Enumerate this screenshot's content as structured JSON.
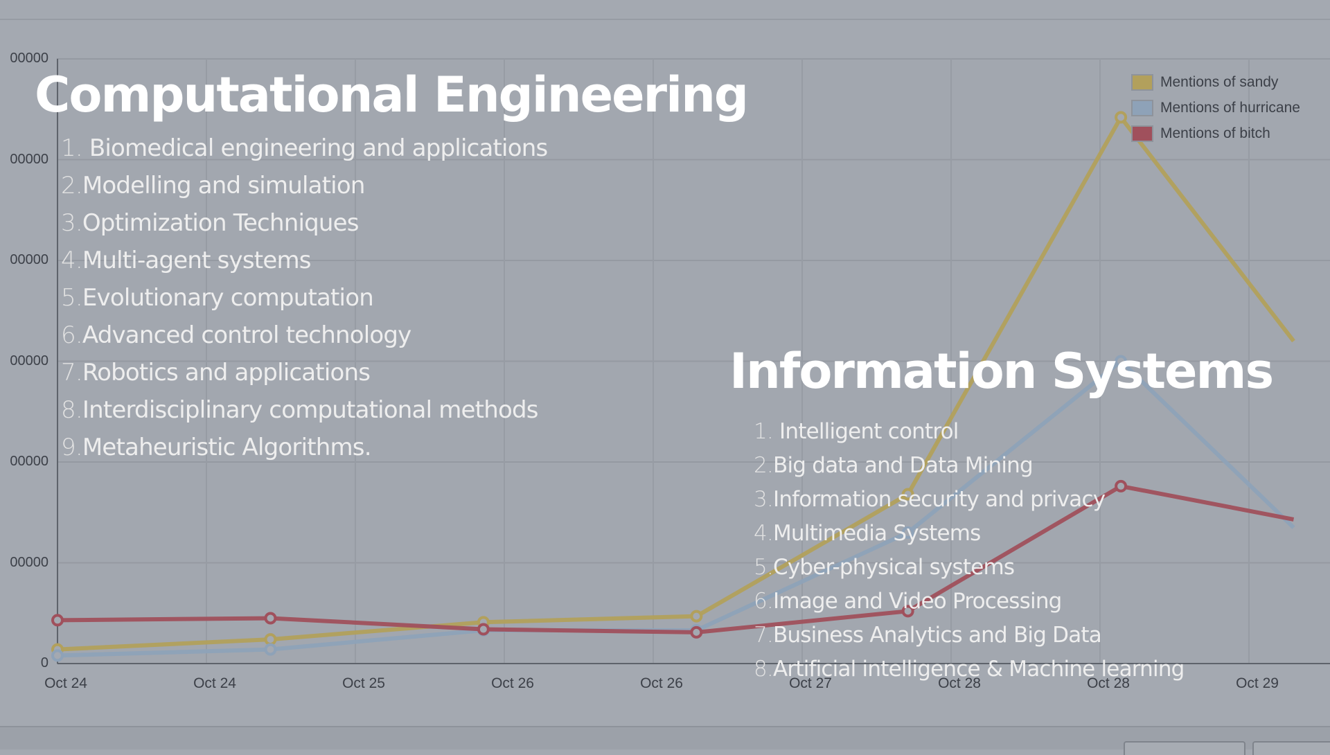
{
  "chart_data": {
    "type": "line",
    "x": [
      "Oct 24",
      "Oct 24",
      "Oct 25",
      "Oct 26",
      "Oct 26",
      "Oct 27",
      "Oct 28",
      "Oct 28",
      "Oct 29"
    ],
    "y_ticks": [
      "0",
      "00000",
      "00000",
      "00000",
      "00000",
      "00000",
      "00000"
    ],
    "ylim": [
      0,
      6
    ],
    "grid": true,
    "legend_position": "top-right",
    "series": [
      {
        "name": "Mentions of sandy",
        "color": "#b2a05c",
        "points": [
          [
            0,
            0.14
          ],
          [
            1.43,
            0.24
          ],
          [
            2.86,
            0.41
          ],
          [
            4.29,
            0.47
          ],
          [
            5.71,
            1.68
          ],
          [
            7.14,
            5.42
          ],
          [
            8.3,
            3.2
          ]
        ]
      },
      {
        "name": "Mentions of hurricane",
        "color": "#8ea2b8",
        "points": [
          [
            0,
            0.08
          ],
          [
            1.43,
            0.14
          ],
          [
            2.86,
            0.33
          ],
          [
            4.29,
            0.33
          ],
          [
            5.71,
            1.3
          ],
          [
            7.14,
            3.0
          ],
          [
            8.3,
            1.35
          ]
        ]
      },
      {
        "name": "Mentions of bitch",
        "color": "#a0505c",
        "points": [
          [
            0,
            0.43
          ],
          [
            1.43,
            0.45
          ],
          [
            2.86,
            0.34
          ],
          [
            4.29,
            0.31
          ],
          [
            5.71,
            0.52
          ],
          [
            7.14,
            1.76
          ],
          [
            8.3,
            1.43
          ]
        ]
      }
    ]
  },
  "computational_engineering": {
    "title": "Computational Engineering",
    "items": [
      {
        "num": "1.",
        "text": "Biomedical engineering and applications"
      },
      {
        "num": "2.",
        "text": "Modelling and simulation"
      },
      {
        "num": "3.",
        "text": "Optimization Techniques"
      },
      {
        "num": "4.",
        "text": "Multi-agent systems"
      },
      {
        "num": "5.",
        "text": "Evolutionary computation"
      },
      {
        "num": "6.",
        "text": "Advanced control technology"
      },
      {
        "num": "7.",
        "text": "Robotics and applications"
      },
      {
        "num": "8.",
        "text": "Interdisciplinary computational methods"
      },
      {
        "num": "9.",
        "text": "Metaheuristic Algorithms."
      }
    ]
  },
  "information_systems": {
    "title": "Information Systems",
    "items": [
      {
        "num": "1.",
        "text": "Intelligent control"
      },
      {
        "num": "2.",
        "text": "Big data and Data Mining"
      },
      {
        "num": "3.",
        "text": "Information security and privacy"
      },
      {
        "num": "4.",
        "text": "Multimedia Systems"
      },
      {
        "num": "5.",
        "text": "Cyber-physical systems"
      },
      {
        "num": "6.",
        "text": "Image and Video Processing"
      },
      {
        "num": "7.",
        "text": "Business Analytics and Big Data"
      },
      {
        "num": "8.",
        "text": "Artificial intelligence & Machine learning"
      }
    ]
  }
}
